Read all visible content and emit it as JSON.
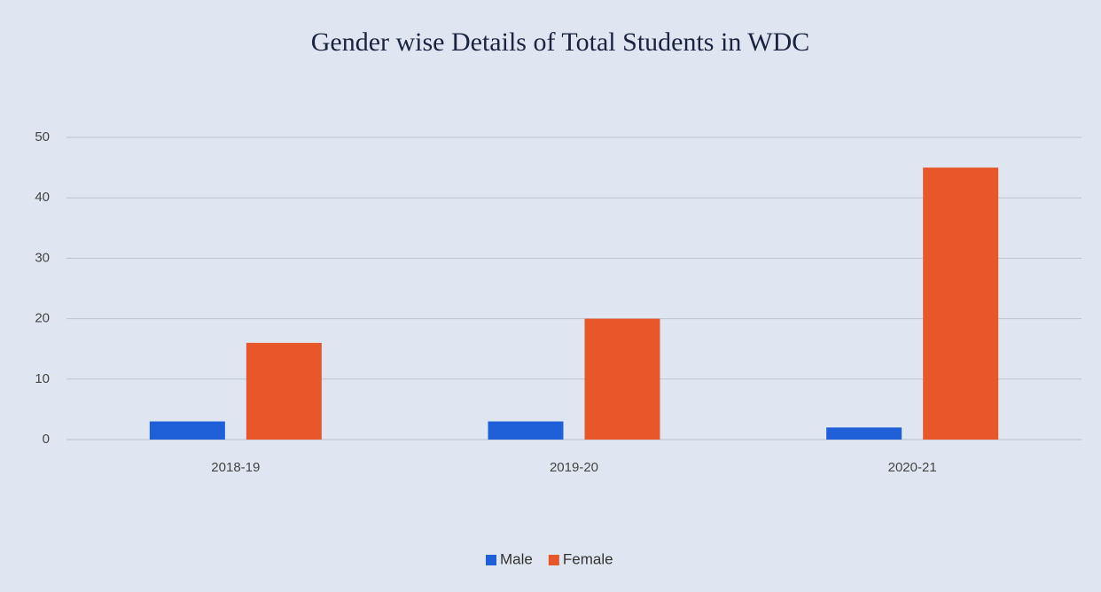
{
  "chart_data": {
    "type": "bar",
    "title": "Gender wise Details of Total Students in WDC",
    "categories": [
      "2018-19",
      "2019-20",
      "2020-21"
    ],
    "series": [
      {
        "name": "Male",
        "color": "#1f5fd8",
        "values": [
          3,
          3,
          2
        ]
      },
      {
        "name": "Female",
        "color": "#e8572a",
        "values": [
          16,
          20,
          45
        ]
      }
    ],
    "ylim": [
      0,
      50
    ],
    "yticks": [
      0,
      10,
      20,
      30,
      40,
      50
    ],
    "grid": true,
    "legend": "bottom"
  }
}
